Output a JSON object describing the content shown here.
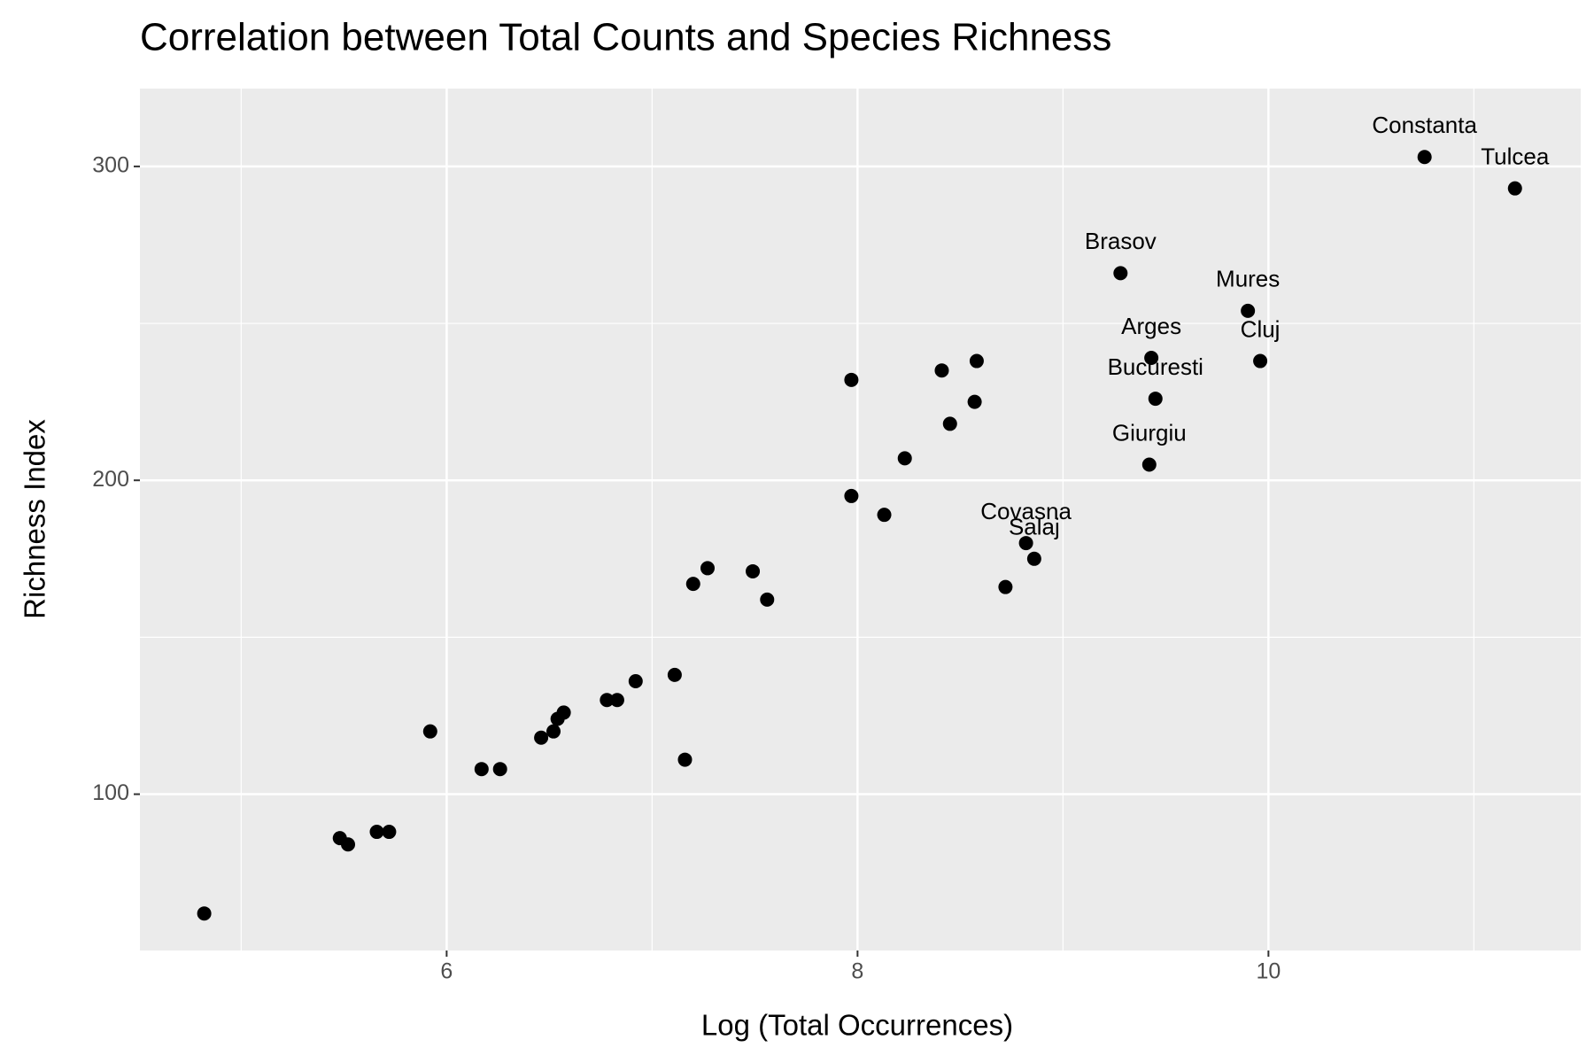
{
  "chart_data": {
    "type": "scatter",
    "title": "Correlation between Total Counts and Species Richness",
    "x_label": "Log (Total Occurrences)",
    "y_label": "Richness Index",
    "x": [
      4.82,
      5.48,
      5.52,
      5.66,
      5.72,
      5.92,
      6.17,
      6.26,
      6.46,
      6.52,
      6.54,
      6.57,
      6.78,
      6.83,
      6.92,
      7.11,
      7.16,
      7.2,
      7.27,
      7.49,
      7.56,
      7.97,
      7.97,
      8.13,
      8.23,
      8.41,
      8.45,
      8.57,
      8.58,
      8.72,
      8.82,
      8.86,
      9.28,
      9.42,
      9.43,
      9.45,
      9.9,
      9.96,
      10.76,
      11.2
    ],
    "values": [
      62,
      86,
      84,
      88,
      88,
      120,
      108,
      108,
      118,
      120,
      124,
      126,
      130,
      130,
      136,
      138,
      111,
      167,
      172,
      171,
      162,
      195,
      232,
      189,
      207,
      235,
      218,
      225,
      238,
      166,
      180,
      175,
      266,
      205,
      239,
      226,
      254,
      238,
      303,
      293
    ],
    "labels": [
      null,
      null,
      null,
      null,
      null,
      null,
      null,
      null,
      null,
      null,
      null,
      null,
      null,
      null,
      null,
      null,
      null,
      null,
      null,
      null,
      null,
      null,
      null,
      null,
      null,
      null,
      null,
      null,
      null,
      null,
      "Covasna",
      "Salaj",
      "Brasov",
      "Giurgiu",
      "Arges",
      "Bucuresti",
      "Mures",
      "Cluj",
      "Constanta",
      "Tulcea"
    ],
    "color": "#000000",
    "xlim": [
      4.507,
      11.52
    ],
    "ylim": [
      50.2,
      324.8
    ],
    "xticks": [
      6,
      8,
      10
    ],
    "yticks": [
      100,
      200,
      300
    ],
    "grid": true
  }
}
